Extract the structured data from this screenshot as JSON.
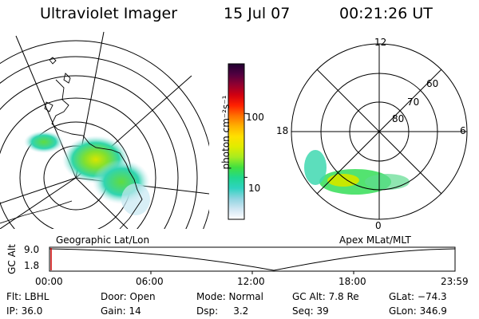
{
  "header": {
    "instrument": "Ultraviolet Imager",
    "date": "15 Jul 07",
    "time": "00:21:26 UT"
  },
  "left_map": {
    "label": "Geographic Lat/Lon"
  },
  "right_map": {
    "label": "Apex MLat/MLT",
    "mlt_labels": {
      "top": "12",
      "left": "18",
      "right": "6",
      "bottom": "0"
    },
    "lat_labels": [
      "60",
      "70",
      "80"
    ]
  },
  "colorbar": {
    "unit_label": "photon cm⁻²s⁻¹",
    "ticks": [
      {
        "label": "100",
        "value": 100
      },
      {
        "label": "10",
        "value": 10
      }
    ],
    "colors": [
      "#ffffff",
      "#cfe6f2",
      "#8fd4e0",
      "#2fd3c0",
      "#20d890",
      "#40e040",
      "#a8ec20",
      "#e0ec00",
      "#ffe000",
      "#ffb000",
      "#ff7000",
      "#ff2000",
      "#d00010",
      "#900030",
      "#500040",
      "#200030"
    ]
  },
  "timeline": {
    "ylabel": "GC Alt",
    "y_ticks": [
      "9.0",
      "1.8"
    ],
    "x_ticks": [
      "00:00",
      "06:00",
      "12:00",
      "18:00",
      "23:59"
    ]
  },
  "status": [
    {
      "key": "filter",
      "text": "Flt: LBHL"
    },
    {
      "key": "door",
      "text": "Door: Open"
    },
    {
      "key": "mode",
      "text": "Mode: Normal"
    },
    {
      "key": "gc_alt",
      "text": "GC Alt: 7.8 Re"
    },
    {
      "key": "glat",
      "text": "GLat: −74.3"
    },
    {
      "key": "ip",
      "text": "IP: 36.0"
    },
    {
      "key": "gain",
      "text": "Gain: 14"
    },
    {
      "key": "dsp",
      "text": "Dsp:     3.2"
    },
    {
      "key": "seq",
      "text": "Seq: 39"
    },
    {
      "key": "glon",
      "text": "GLon: 346.9"
    }
  ]
}
